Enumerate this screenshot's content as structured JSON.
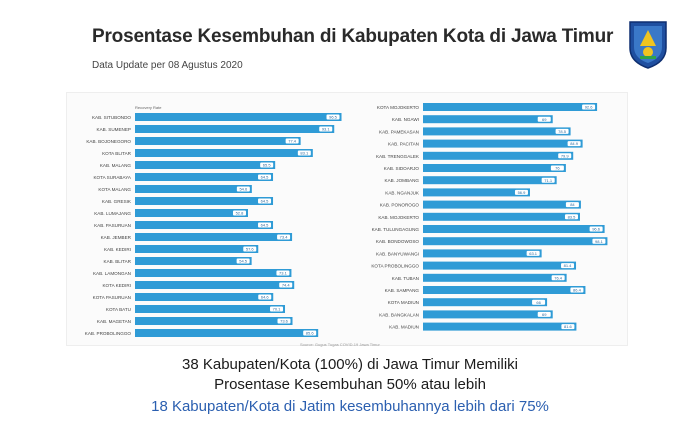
{
  "header": {
    "title": "Prosentase Kesembuhan di Kabupaten Kota di Jawa Timur",
    "subtitle": "Data Update per 08 Agustus 2020"
  },
  "colors": {
    "bar": "#2f9bd6",
    "label_bg": "#ffffff"
  },
  "chart_data": [
    {
      "type": "bar",
      "orientation": "horizontal",
      "series_name": "Recovery Rate",
      "xlim": [
        0,
        100
      ],
      "categories": [
        "KAB. SITUBONDO",
        "KAB. SUMENEP",
        "KAB. BOJONEGORO",
        "KOTA BLITAR",
        "KAB. MALANG",
        "KOTA SURABAYA",
        "KOTA MALANG",
        "KAB. GRESIK",
        "KAB. LUMAJANG",
        "KAB. PASURUAN",
        "KAB. JEMBER",
        "KAB. KEDIRI",
        "KAB. BLITAR",
        "KAB. LAMONGAN",
        "KOTA KEDIRI",
        "KOTA PASURUAN",
        "KOTA BATU",
        "KAB. MAGETAN",
        "KAB. PROBOLINGGO"
      ],
      "values": [
        96.5,
        93.1,
        77.4,
        83.1,
        65.5,
        64.5,
        54.6,
        64.5,
        52.8,
        64.5,
        73.4,
        57.6,
        54.5,
        73.1,
        74.4,
        64.6,
        70.1,
        73.6,
        85.6
      ]
    },
    {
      "type": "bar",
      "orientation": "horizontal",
      "series_name": "Recovery Rate",
      "xlim": [
        0,
        100
      ],
      "categories": [
        "KOTA MOJOKERTO",
        "KAB. NGAWI",
        "KAB. PAMEKASAN",
        "KAB. PACITAN",
        "KAB. TRENGGALEK",
        "KAB. SIDOARJO",
        "KAB. JOMBANG",
        "KAB. NGANJUK",
        "KAB. PONOROGO",
        "KAB. MOJOKERTO",
        "KAB. TULUNGAGUNG",
        "KAB. BONDOWOSO",
        "KAB. BANYUWANGI",
        "KOTA PROBOLINGGO",
        "KAB. TUBAN",
        "KAB. SAMPANG",
        "KOTA MADIUN",
        "KAB. BANGKALAN",
        "KAB. MADIUN"
      ],
      "values": [
        92.6,
        69,
        78.5,
        84.9,
        79.9,
        76,
        71.1,
        56.9,
        84,
        83.5,
        96.6,
        98.1,
        63.1,
        81.4,
        76.4,
        86.4,
        66,
        69,
        81.6
      ]
    }
  ],
  "footer": {
    "line1": "38 Kabupaten/Kota (100%) di Jawa Timur Memiliki",
    "line2": "Prosentase Kesembuhan 50% atau lebih",
    "line3": "18 Kabupaten/Kota di Jatim kesembuhannya lebih dari 75%",
    "source": "Source: Gugus Tugas COVID-19 Jawa Timur"
  }
}
